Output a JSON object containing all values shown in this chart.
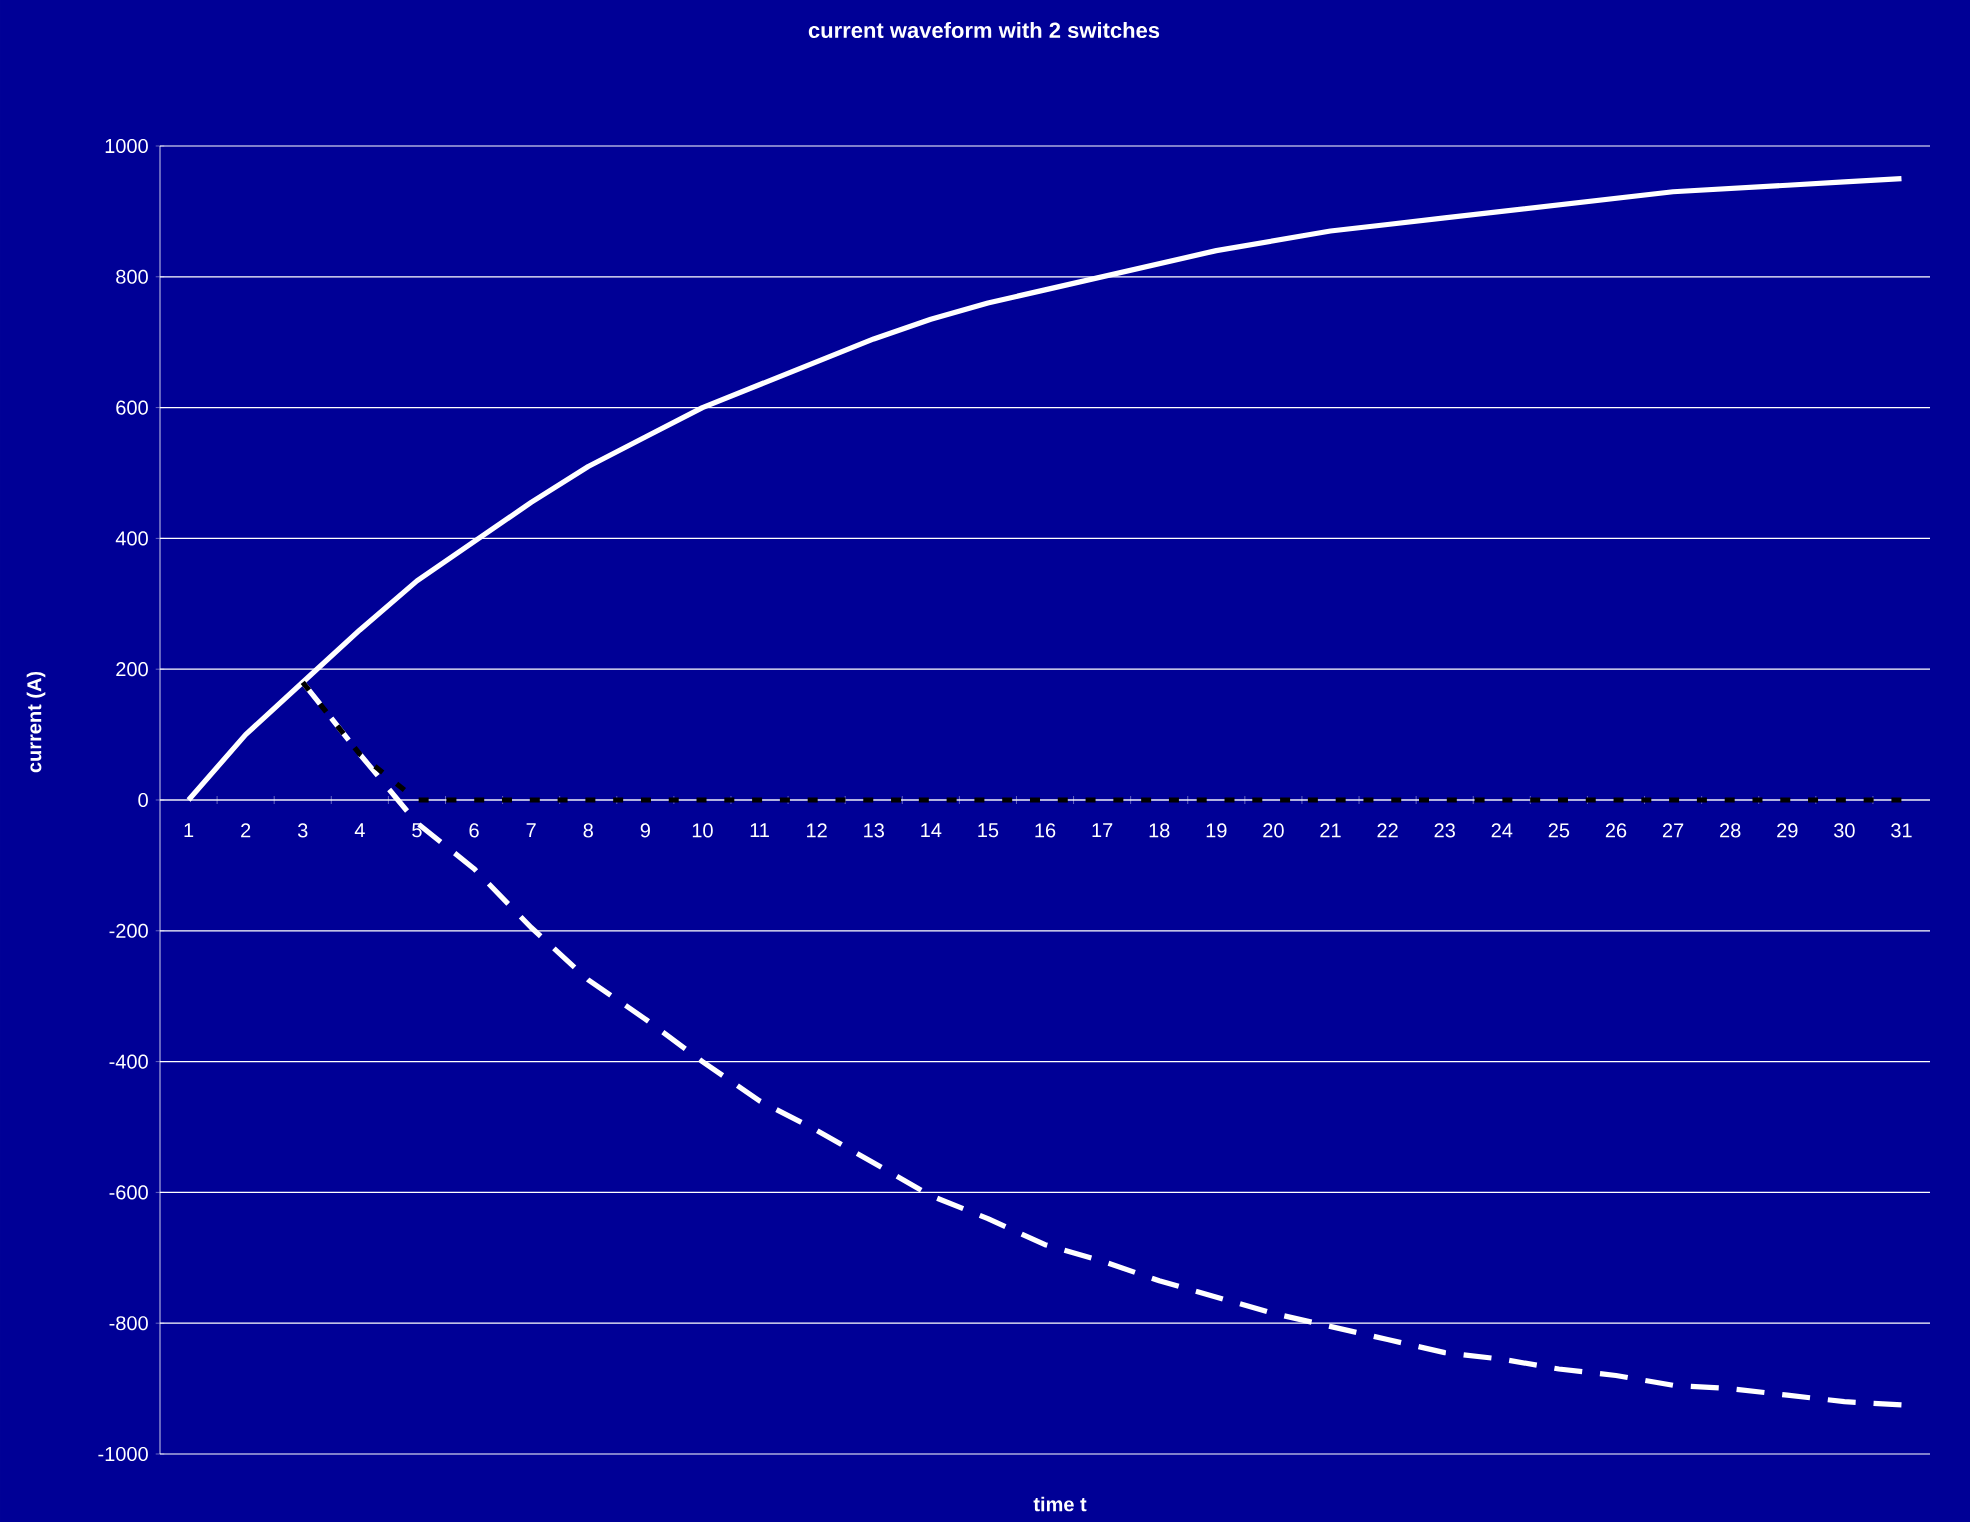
{
  "chart_data": {
    "type": "line",
    "title": "current waveform with 2 switches",
    "xlabel": "time t",
    "ylabel": "current (A)",
    "categories": [
      "1",
      "2",
      "3",
      "4",
      "5",
      "6",
      "7",
      "8",
      "9",
      "10",
      "11",
      "12",
      "13",
      "14",
      "15",
      "16",
      "17",
      "18",
      "19",
      "20",
      "21",
      "22",
      "23",
      "24",
      "25",
      "26",
      "27",
      "28",
      "29",
      "30",
      "31"
    ],
    "series": [
      {
        "color": "#ffffff",
        "line_style": "solid",
        "values": [
          0,
          100,
          180,
          260,
          335,
          395,
          455,
          510,
          555,
          600,
          635,
          670,
          705,
          735,
          760,
          780,
          800,
          820,
          840,
          855,
          870,
          880,
          890,
          900,
          910,
          920,
          930,
          935,
          940,
          945,
          950
        ]
      },
      {
        "color": "#ffffff",
        "line_style": "dashed",
        "values": [
          null,
          null,
          180,
          70,
          -35,
          -105,
          -195,
          -275,
          -335,
          -400,
          -460,
          -505,
          -555,
          -605,
          -640,
          -680,
          -705,
          -735,
          -760,
          -785,
          -805,
          -825,
          -845,
          -855,
          -870,
          -880,
          -895,
          -900,
          -910,
          -920,
          -925
        ]
      },
      {
        "color": "#000000",
        "line_style": "dotted",
        "values": [
          null,
          null,
          180,
          70,
          0,
          0,
          0,
          0,
          0,
          0,
          0,
          0,
          0,
          0,
          0,
          0,
          0,
          0,
          0,
          0,
          0,
          0,
          0,
          0,
          0,
          0,
          0,
          0,
          0,
          0,
          0
        ]
      }
    ],
    "ylim": [
      -1000,
      1000
    ],
    "yticks": [
      -1000,
      -800,
      -600,
      -400,
      -200,
      0,
      200,
      400,
      600,
      800,
      1000
    ],
    "grid": "y",
    "marker": "none"
  }
}
